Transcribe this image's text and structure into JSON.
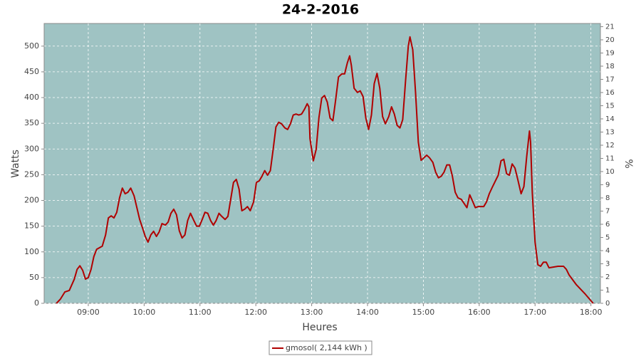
{
  "chart_data": {
    "type": "line",
    "title": "24-2-2016",
    "x_label": "Heures",
    "y_label": "Watts",
    "y2_label": "%",
    "background": "#9fc3c3",
    "grid": true,
    "legend": "bottom",
    "xlim": [
      8.21,
      18.17
    ],
    "xticks": [
      {
        "value": 9,
        "label": "09:00"
      },
      {
        "value": 10,
        "label": "10:00"
      },
      {
        "value": 11,
        "label": "11:00"
      },
      {
        "value": 12,
        "label": "12:00"
      },
      {
        "value": 13,
        "label": "13:00"
      },
      {
        "value": 14,
        "label": "14:00"
      },
      {
        "value": 15,
        "label": "15:00"
      },
      {
        "value": 16,
        "label": "16:00"
      },
      {
        "value": 17,
        "label": "17:00"
      },
      {
        "value": 18,
        "label": "18:00"
      }
    ],
    "ylim": [
      0,
      544
    ],
    "yticks": [
      0,
      50,
      100,
      150,
      200,
      250,
      300,
      350,
      400,
      450,
      500
    ],
    "y2lim": [
      0,
      21.24
    ],
    "y2ticks": [
      0,
      1,
      2,
      3,
      4,
      5,
      6,
      7,
      8,
      9,
      10,
      11,
      12,
      13,
      14,
      15,
      16,
      17,
      18,
      19,
      20,
      21
    ],
    "x": [
      8.43,
      8.5,
      8.58,
      8.66,
      8.75,
      8.8,
      8.85,
      8.9,
      8.95,
      9.0,
      9.05,
      9.1,
      9.15,
      9.25,
      9.31,
      9.36,
      9.41,
      9.46,
      9.51,
      9.56,
      9.61,
      9.66,
      9.71,
      9.76,
      9.82,
      9.87,
      9.92,
      9.97,
      10.02,
      10.07,
      10.12,
      10.17,
      10.22,
      10.27,
      10.32,
      10.38,
      10.43,
      10.48,
      10.53,
      10.58,
      10.63,
      10.68,
      10.73,
      10.78,
      10.83,
      10.89,
      10.94,
      10.99,
      11.04,
      11.09,
      11.14,
      11.19,
      11.24,
      11.29,
      11.34,
      11.39,
      11.45,
      11.5,
      11.55,
      11.6,
      11.65,
      11.7,
      11.75,
      11.8,
      11.85,
      11.9,
      11.96,
      12.01,
      12.06,
      12.11,
      12.16,
      12.21,
      12.26,
      12.31,
      12.36,
      12.41,
      12.46,
      12.52,
      12.57,
      12.62,
      12.67,
      12.72,
      12.77,
      12.82,
      12.87,
      12.92,
      12.95,
      12.97,
      13.03,
      13.08,
      13.13,
      13.18,
      13.23,
      13.28,
      13.33,
      13.38,
      13.43,
      13.48,
      13.54,
      13.59,
      13.64,
      13.68,
      13.71,
      13.76,
      13.82,
      13.87,
      13.92,
      13.97,
      14.02,
      14.07,
      14.12,
      14.17,
      14.22,
      14.27,
      14.32,
      14.38,
      14.43,
      14.48,
      14.53,
      14.58,
      14.63,
      14.68,
      14.73,
      14.76,
      14.81,
      14.86,
      14.91,
      14.96,
      15.01,
      15.06,
      15.11,
      15.17,
      15.22,
      15.27,
      15.32,
      15.37,
      15.42,
      15.47,
      15.52,
      15.57,
      15.62,
      15.68,
      15.73,
      15.78,
      15.83,
      15.88,
      15.93,
      15.98,
      16.08,
      16.13,
      16.18,
      16.24,
      16.29,
      16.34,
      16.39,
      16.44,
      16.49,
      16.54,
      16.59,
      16.64,
      16.69,
      16.75,
      16.8,
      16.85,
      16.9,
      16.92,
      16.95,
      17.0,
      17.05,
      17.1,
      17.15,
      17.2,
      17.25,
      17.41,
      17.51,
      17.56,
      17.61,
      17.74,
      17.89,
      18.04
    ],
    "series": [
      {
        "name": "gmosol( 2,144 kWh )",
        "color": "#b00000",
        "values": [
          0,
          8,
          22,
          25,
          47,
          66,
          73,
          64,
          47,
          50,
          66,
          91,
          105,
          111,
          133,
          166,
          170,
          166,
          177,
          205,
          224,
          213,
          216,
          224,
          209,
          186,
          163,
          147,
          130,
          119,
          133,
          140,
          130,
          139,
          155,
          152,
          158,
          175,
          183,
          172,
          141,
          127,
          133,
          161,
          175,
          161,
          150,
          150,
          163,
          177,
          175,
          161,
          152,
          161,
          175,
          169,
          163,
          169,
          202,
          235,
          241,
          222,
          180,
          183,
          188,
          180,
          197,
          235,
          238,
          247,
          258,
          249,
          258,
          299,
          343,
          352,
          349,
          341,
          338,
          349,
          366,
          368,
          366,
          368,
          377,
          388,
          382,
          320,
          277,
          299,
          361,
          399,
          404,
          391,
          360,
          355,
          396,
          440,
          446,
          446,
          468,
          481,
          463,
          418,
          410,
          413,
          402,
          360,
          338,
          366,
          427,
          447,
          418,
          363,
          349,
          363,
          382,
          368,
          346,
          341,
          357,
          431,
          500,
          518,
          493,
          410,
          313,
          278,
          283,
          288,
          283,
          274,
          255,
          244,
          247,
          255,
          269,
          269,
          247,
          216,
          205,
          202,
          194,
          186,
          211,
          199,
          186,
          188,
          188,
          197,
          213,
          227,
          238,
          249,
          277,
          280,
          252,
          249,
          271,
          263,
          241,
          213,
          227,
          285,
          335,
          313,
          216,
          119,
          75,
          72,
          80,
          80,
          69,
          72,
          72,
          66,
          55,
          36,
          19,
          0
        ]
      }
    ]
  }
}
